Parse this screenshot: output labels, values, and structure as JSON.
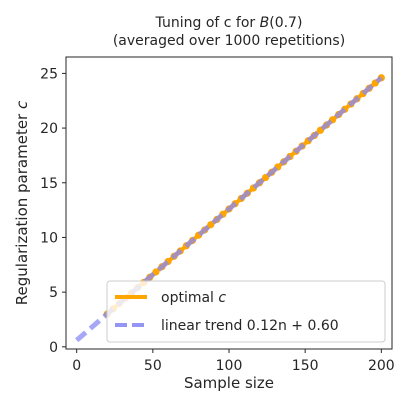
{
  "chart_data": {
    "type": "line",
    "title_line1_prefix": "Tuning of c for ",
    "title_line1_math": "B",
    "title_line1_suffix": "(0.7)",
    "title_line2": "(averaged over 1000 repetitions)",
    "xlabel": "Sample size",
    "ylabel_prefix": "Regularization parameter ",
    "ylabel_math": "c",
    "xlim": [
      -7,
      207
    ],
    "ylim": [
      -0.2,
      26.5
    ],
    "xticks": [
      0,
      50,
      100,
      150,
      200
    ],
    "yticks": [
      0,
      5,
      10,
      15,
      20,
      25
    ],
    "grid": false,
    "legend_position": "lower-right",
    "series": [
      {
        "name_prefix": "optimal ",
        "name_math": "c",
        "color": "#FFA500",
        "x_start": 20,
        "x_end": 200,
        "x_step": 4,
        "slope": 0.12,
        "intercept": 0.6
      },
      {
        "name": "linear trend 0.12n + 0.60",
        "color": "#8A8AF5",
        "slope": 0.12,
        "intercept": 0.6,
        "x_range": [
          0,
          200
        ]
      }
    ]
  }
}
